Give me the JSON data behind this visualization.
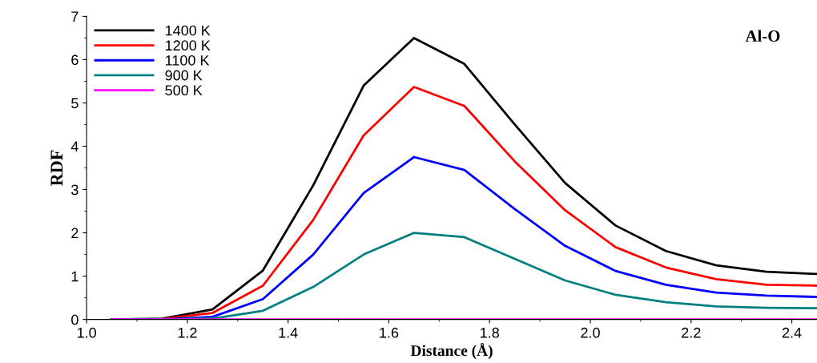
{
  "chart_data": {
    "type": "line",
    "xlabel": "Distance (Å)",
    "ylabel": "RDF",
    "annotations": [
      "Al-O"
    ],
    "x": [
      1.05,
      1.15,
      1.25,
      1.35,
      1.45,
      1.55,
      1.65,
      1.75,
      1.85,
      1.95,
      2.05,
      2.15,
      2.25,
      2.35,
      2.45
    ],
    "series": [
      {
        "name": "1400 K",
        "color": "#000000",
        "values": [
          0,
          0.02,
          0.23,
          1.13,
          3.1,
          5.4,
          6.5,
          5.9,
          4.5,
          3.15,
          2.17,
          1.58,
          1.25,
          1.1,
          1.05
        ]
      },
      {
        "name": "1200 K",
        "color": "#ff0000",
        "values": [
          0,
          0.01,
          0.15,
          0.78,
          2.3,
          4.25,
          5.37,
          4.93,
          3.65,
          2.52,
          1.67,
          1.2,
          0.93,
          0.8,
          0.78
        ]
      },
      {
        "name": "1100 K",
        "color": "#0000ff",
        "values": [
          0,
          0,
          0.06,
          0.47,
          1.5,
          2.92,
          3.75,
          3.45,
          2.55,
          1.7,
          1.12,
          0.8,
          0.62,
          0.55,
          0.52
        ]
      },
      {
        "name": "900 K",
        "color": "#008080",
        "values": [
          0,
          0,
          0.02,
          0.2,
          0.75,
          1.5,
          2.0,
          1.9,
          1.4,
          0.9,
          0.57,
          0.4,
          0.3,
          0.27,
          0.26
        ]
      },
      {
        "name": "500 K",
        "color": "#ff00ff",
        "values": [
          0,
          0,
          0,
          0,
          0,
          0,
          0,
          0,
          0,
          0,
          0,
          0,
          0,
          0,
          0
        ]
      }
    ],
    "xlim": [
      1.0,
      2.45
    ],
    "xticks": [
      {
        "value": 1,
        "label": "1.0"
      },
      1.2,
      1.4,
      1.6,
      1.8,
      {
        "value": 2,
        "label": "2.0"
      },
      2.2,
      2.4
    ],
    "ylim": [
      0,
      7
    ],
    "yticks": [
      0,
      1,
      2,
      3,
      4,
      5,
      6,
      7
    ],
    "grid": false,
    "legend": "top left",
    "marker": "none",
    "line_style": "solid"
  }
}
